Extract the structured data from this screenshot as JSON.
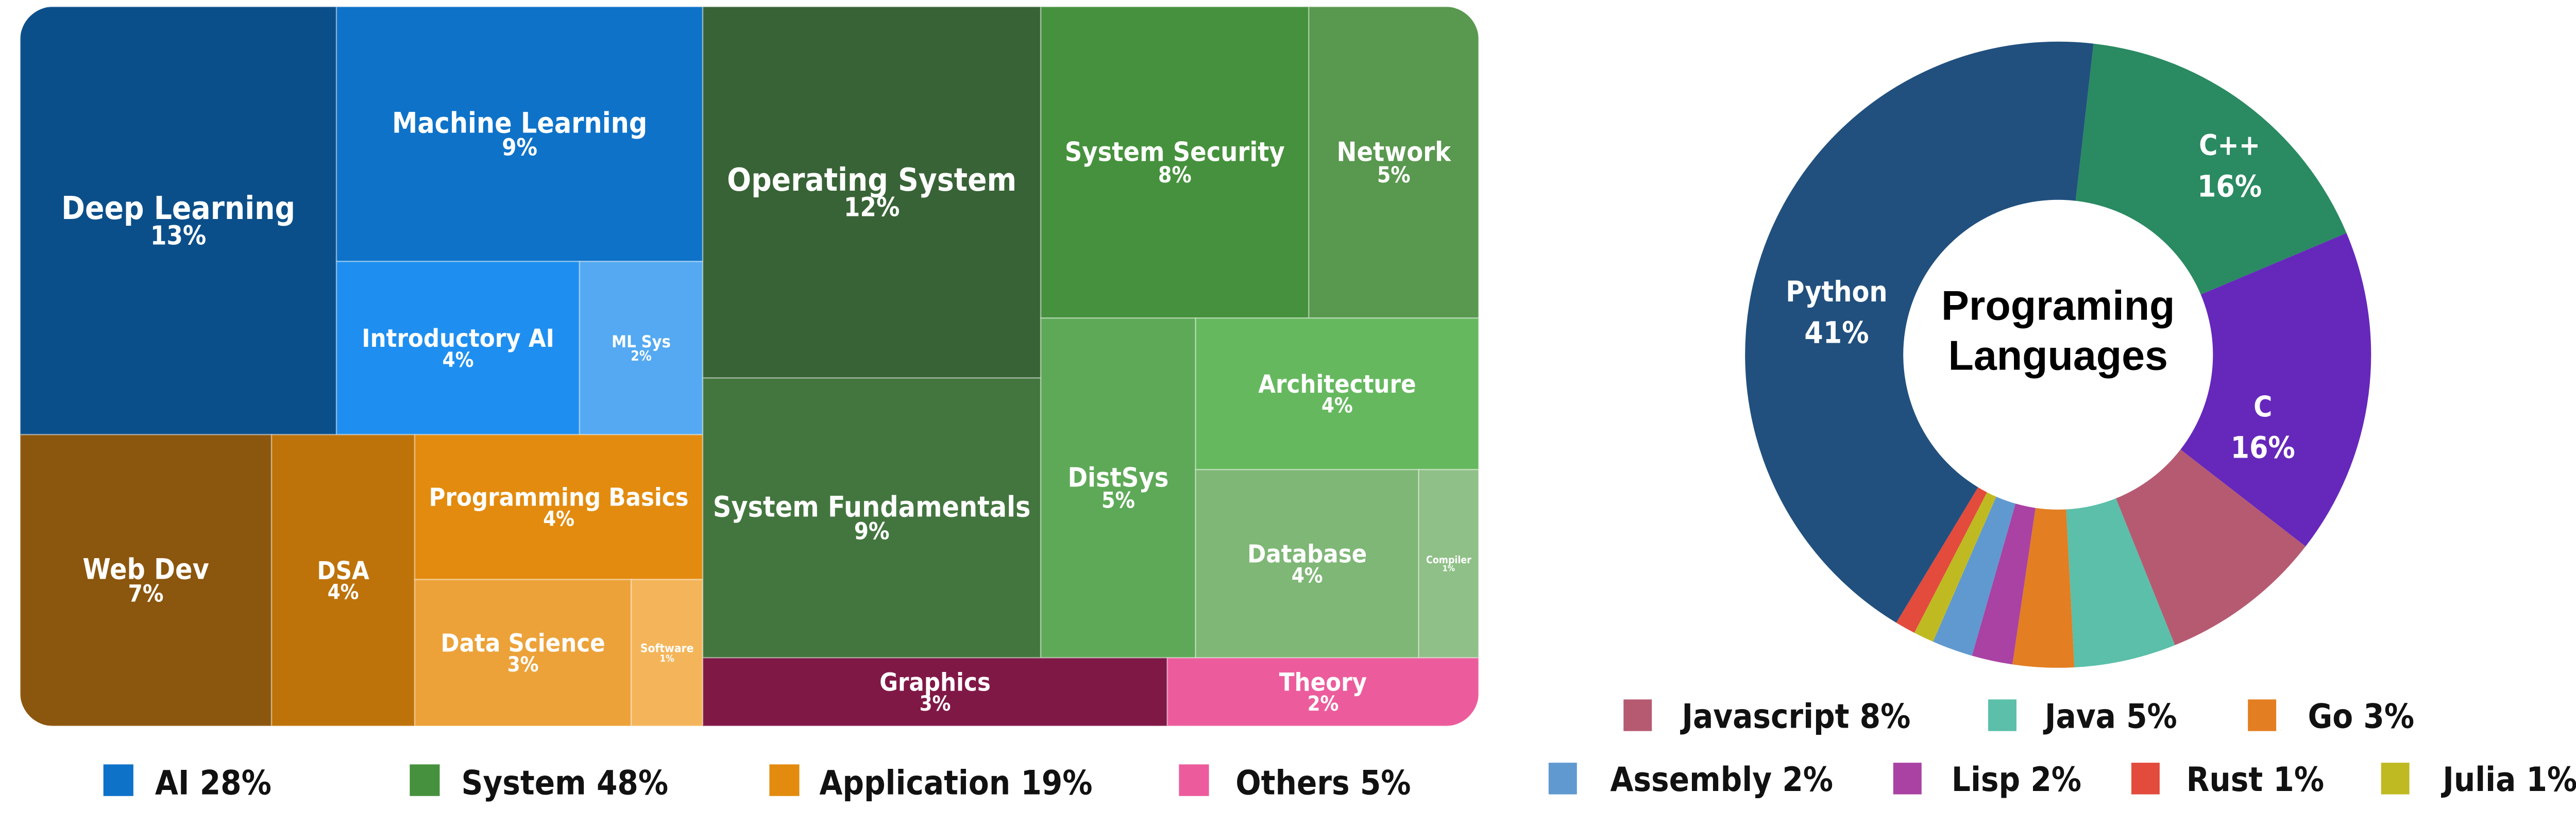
{
  "chart_data": [
    {
      "type": "treemap",
      "groups": [
        {
          "name": "AI",
          "label": "AI 28%",
          "color": "#0e72c8"
        },
        {
          "name": "System",
          "label": "System 48%",
          "color": "#46913d"
        },
        {
          "name": "Application",
          "label": "Application 19%",
          "color": "#e38b0e"
        },
        {
          "name": "Others",
          "label": "Others 5%",
          "color": "#ec5c9c"
        }
      ],
      "items": [
        {
          "name": "Deep Learning",
          "value": "13%",
          "group": "AI",
          "color": "#0b4f8a"
        },
        {
          "name": "Machine Learning",
          "value": "9%",
          "group": "AI",
          "color": "#0e72c8"
        },
        {
          "name": "Introductory AI",
          "value": "4%",
          "group": "AI",
          "color": "#1e8ff0"
        },
        {
          "name": "ML Sys",
          "value": "2%",
          "group": "AI",
          "color": "#54a9f2"
        },
        {
          "name": "Web Dev",
          "value": "7%",
          "group": "Application",
          "color": "#8b560d"
        },
        {
          "name": "DSA",
          "value": "4%",
          "group": "Application",
          "color": "#be730a"
        },
        {
          "name": "Programming Basics",
          "value": "4%",
          "group": "Application",
          "color": "#e38b0e"
        },
        {
          "name": "Data Science",
          "value": "3%",
          "group": "Application",
          "color": "#eca239"
        },
        {
          "name": "Software",
          "value": "1%",
          "group": "Application",
          "color": "#f4b55a"
        },
        {
          "name": "Operating System",
          "value": "12%",
          "group": "System",
          "color": "#386336"
        },
        {
          "name": "System Fundamentals",
          "value": "9%",
          "group": "System",
          "color": "#43763f"
        },
        {
          "name": "System Security",
          "value": "8%",
          "group": "System",
          "color": "#46913d"
        },
        {
          "name": "Network",
          "value": "5%",
          "group": "System",
          "color": "#59984f"
        },
        {
          "name": "DistSys",
          "value": "5%",
          "group": "System",
          "color": "#5ea958"
        },
        {
          "name": "Architecture",
          "value": "4%",
          "group": "System",
          "color": "#66b85f"
        },
        {
          "name": "Database",
          "value": "4%",
          "group": "System",
          "color": "#7fb776"
        },
        {
          "name": "Compiler",
          "value": "1%",
          "group": "System",
          "color": "#8fc087"
        },
        {
          "name": "Graphics",
          "value": "3%",
          "group": "Others",
          "color": "#801846"
        },
        {
          "name": "Theory",
          "value": "2%",
          "group": "Others",
          "color": "#ec5c9c"
        }
      ]
    },
    {
      "type": "pie",
      "donut": true,
      "title_lines": [
        "Programing",
        "Languages"
      ],
      "slices": [
        {
          "name": "C++",
          "value": 16,
          "label": "16%",
          "color": "#2a8a62",
          "in_slice_label": true
        },
        {
          "name": "C",
          "value": 16,
          "label": "16%",
          "color": "#6628bb",
          "in_slice_label": true
        },
        {
          "name": "Javascript",
          "value": 8,
          "label": "Javascript 8%",
          "color": "#b65a72"
        },
        {
          "name": "Java",
          "value": 5,
          "label": "Java 5%",
          "color": "#5bbfa9"
        },
        {
          "name": "Go",
          "value": 3,
          "label": "Go 3%",
          "color": "#e37e22"
        },
        {
          "name": "Lisp",
          "value": 2,
          "label": "Lisp 2%",
          "color": "#a942a3"
        },
        {
          "name": "Assembly",
          "value": 2,
          "label": "Assembly 2%",
          "color": "#6099d0"
        },
        {
          "name": "Julia",
          "value": 1,
          "label": "Julia 1%",
          "color": "#c0ba22"
        },
        {
          "name": "Rust",
          "value": 1,
          "label": "Rust 1%",
          "color": "#e34b3d"
        },
        {
          "name": "Python",
          "value": 41,
          "label": "41%",
          "color": "#21507e",
          "in_slice_label": true
        }
      ],
      "legend_order": [
        "Javascript",
        "Java",
        "Go",
        "Assembly",
        "Lisp",
        "Rust",
        "Julia"
      ],
      "legend_placement": "bottom"
    }
  ]
}
